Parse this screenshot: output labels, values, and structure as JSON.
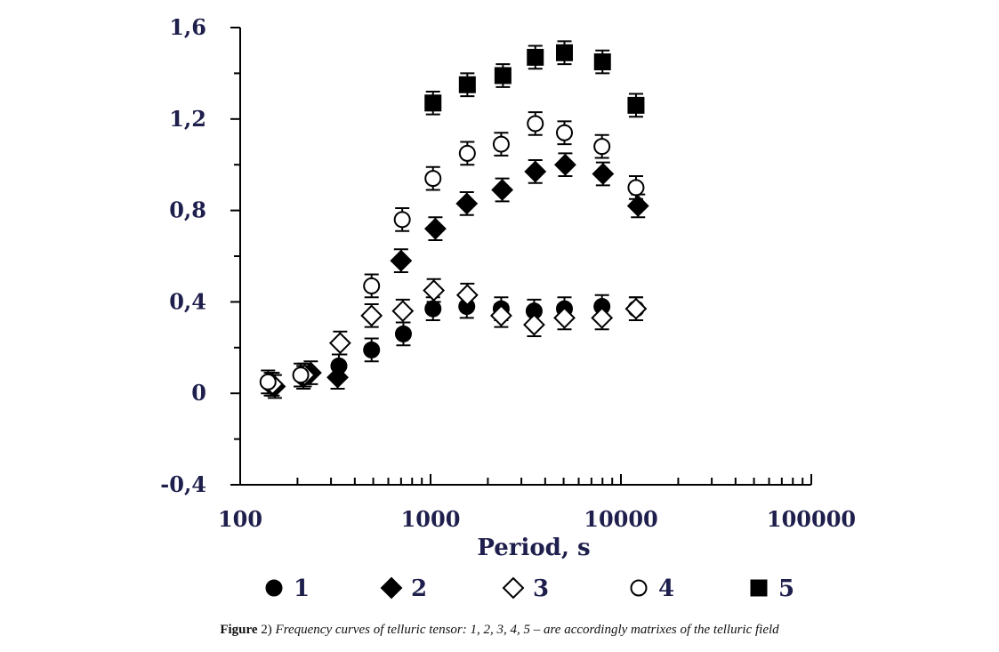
{
  "chart_data": {
    "type": "scatter",
    "xscale": "log",
    "xlim": [
      100,
      100000
    ],
    "ylim": [
      -0.4,
      1.6
    ],
    "xlabel": "Period, s",
    "ylabel": "",
    "x_ticks": [
      {
        "value": 100,
        "label": "100"
      },
      {
        "value": 1000,
        "label": "1000"
      },
      {
        "value": 10000,
        "label": "10000"
      },
      {
        "value": 100000,
        "label": "100000"
      }
    ],
    "y_ticks": [
      {
        "value": 1.6,
        "label": "1,6"
      },
      {
        "value": 1.2,
        "label": "1,2"
      },
      {
        "value": 0.8,
        "label": "0,8"
      },
      {
        "value": 0.4,
        "label": "0,4"
      },
      {
        "value": 0,
        "label": "0"
      },
      {
        "value": -0.4,
        "label": "-0,4"
      }
    ],
    "grid": false,
    "legend_position": "bottom",
    "error_bar": 0.05,
    "series": [
      {
        "name": "1",
        "marker": "circle-filled",
        "x": [
          145,
          215,
          330,
          490,
          720,
          1030,
          1550,
          2350,
          3500,
          5050,
          7950,
          12000
        ],
        "y": [
          0.04,
          0.07,
          0.12,
          0.19,
          0.26,
          0.37,
          0.38,
          0.37,
          0.36,
          0.37,
          0.38,
          0.37
        ]
      },
      {
        "name": "2",
        "marker": "diamond-filled",
        "x": [
          152,
          235,
          325,
          700,
          1060,
          1550,
          2380,
          3550,
          5100,
          8050,
          12300
        ],
        "y": [
          0.03,
          0.09,
          0.07,
          0.58,
          0.72,
          0.83,
          0.89,
          0.97,
          1.0,
          0.96,
          0.82
        ]
      },
      {
        "name": "3",
        "marker": "diamond-open",
        "x": [
          148,
          218,
          335,
          490,
          715,
          1040,
          1560,
          2350,
          3500,
          5050,
          7950,
          12000
        ],
        "y": [
          0.04,
          0.08,
          0.22,
          0.34,
          0.36,
          0.45,
          0.43,
          0.34,
          0.3,
          0.33,
          0.33,
          0.37
        ]
      },
      {
        "name": "4",
        "marker": "circle-open",
        "x": [
          140,
          208,
          490,
          710,
          1030,
          1560,
          2350,
          3550,
          5050,
          7950,
          12000
        ],
        "y": [
          0.05,
          0.08,
          0.47,
          0.76,
          0.94,
          1.05,
          1.09,
          1.18,
          1.14,
          1.08,
          0.9
        ]
      },
      {
        "name": "5",
        "marker": "square-filled",
        "x": [
          1030,
          1560,
          2400,
          3550,
          5050,
          8000,
          12000
        ],
        "y": [
          1.27,
          1.35,
          1.39,
          1.47,
          1.49,
          1.45,
          1.26
        ]
      }
    ],
    "colors": {
      "ink": "#000000",
      "labels": "#1f1f4e"
    }
  },
  "caption": {
    "label": "Figure",
    "number": " 2)",
    "text": " Frequency curves of telluric tensor: 1, 2, 3, 4, 5 – are accordingly matrixes of the telluric field"
  }
}
